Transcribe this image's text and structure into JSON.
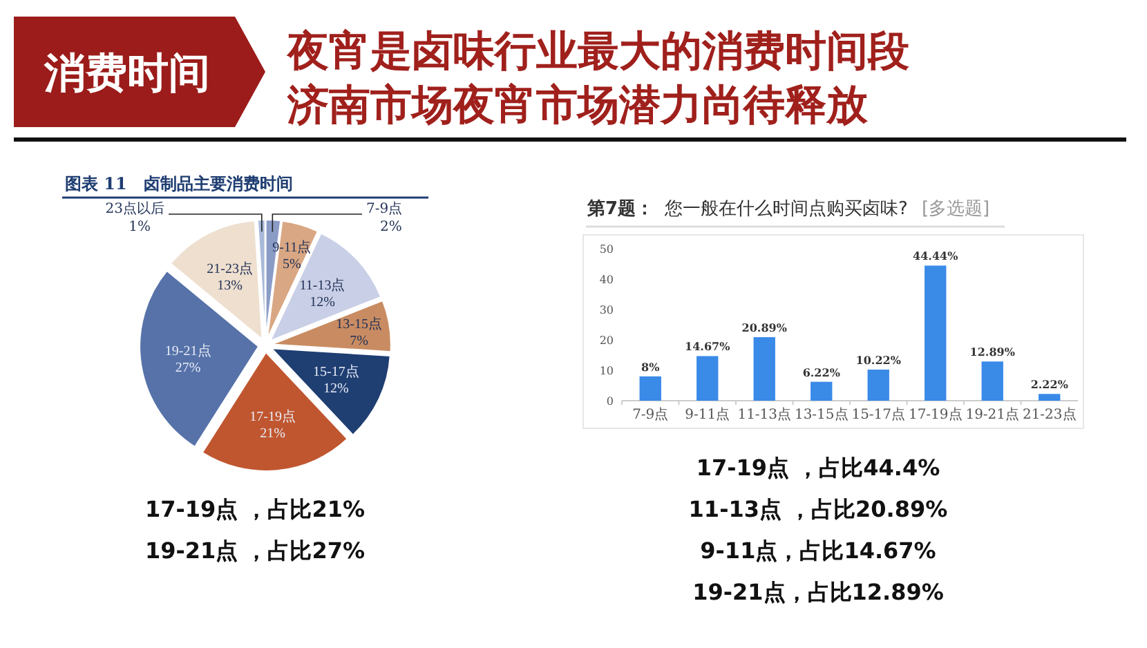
{
  "chart_data": [
    {
      "type": "other",
      "title": "夜宵是卤味行业最大的消费时间段",
      "subtitle": "济南市场夜宵市场潜力尚待释放",
      "annotations": [
        "消费时间"
      ]
    },
    {
      "type": "pie",
      "title": "图表 11　卤制品主要消费时间",
      "categories": [
        "7-9点",
        "9-11点",
        "11-13点",
        "13-15点",
        "15-17点",
        "17-19点",
        "19-21点",
        "21-23点",
        "23点以后"
      ],
      "values": [
        2,
        5,
        12,
        7,
        12,
        21,
        27,
        13,
        1
      ],
      "colors": [
        "#8a9cc6",
        "#d9a783",
        "#c9cfe6",
        "#c98c62",
        "#1f3e72",
        "#c0562f",
        "#5672a9",
        "#eedfcf",
        "#a9b9da"
      ],
      "value_labels": [
        "2%",
        "5%",
        "12%",
        "7%",
        "12%",
        "21%",
        "27%",
        "13%",
        "1%"
      ],
      "annotations": [
        "17-19点 ，占比21%",
        "19-21点 ，占比27%"
      ]
    },
    {
      "type": "bar",
      "title": "第7题：",
      "subtitle": "您一般在什么时间点购买卤味?",
      "legend_title": "[多选题]",
      "categories": [
        "7-9点",
        "9-11点",
        "11-13点",
        "13-15点",
        "15-17点",
        "17-19点",
        "19-21点",
        "21-23点"
      ],
      "values": [
        8,
        14.67,
        20.89,
        6.22,
        10.22,
        44.44,
        12.89,
        2.22
      ],
      "color": "#3a8ae8",
      "value_labels": [
        "8%",
        "14.67%",
        "20.89%",
        "6.22%",
        "10.22%",
        "44.44%",
        "12.89%",
        "2.22%"
      ],
      "ylim": [
        0,
        50
      ],
      "yticks": [
        0,
        10,
        20,
        30,
        40,
        50
      ],
      "annotations": [
        "17-19点 ，占比44.4%",
        "11-13点 ，占比20.89%",
        "9-11点，占比14.67%",
        "19-21点，占比12.89%"
      ]
    }
  ]
}
